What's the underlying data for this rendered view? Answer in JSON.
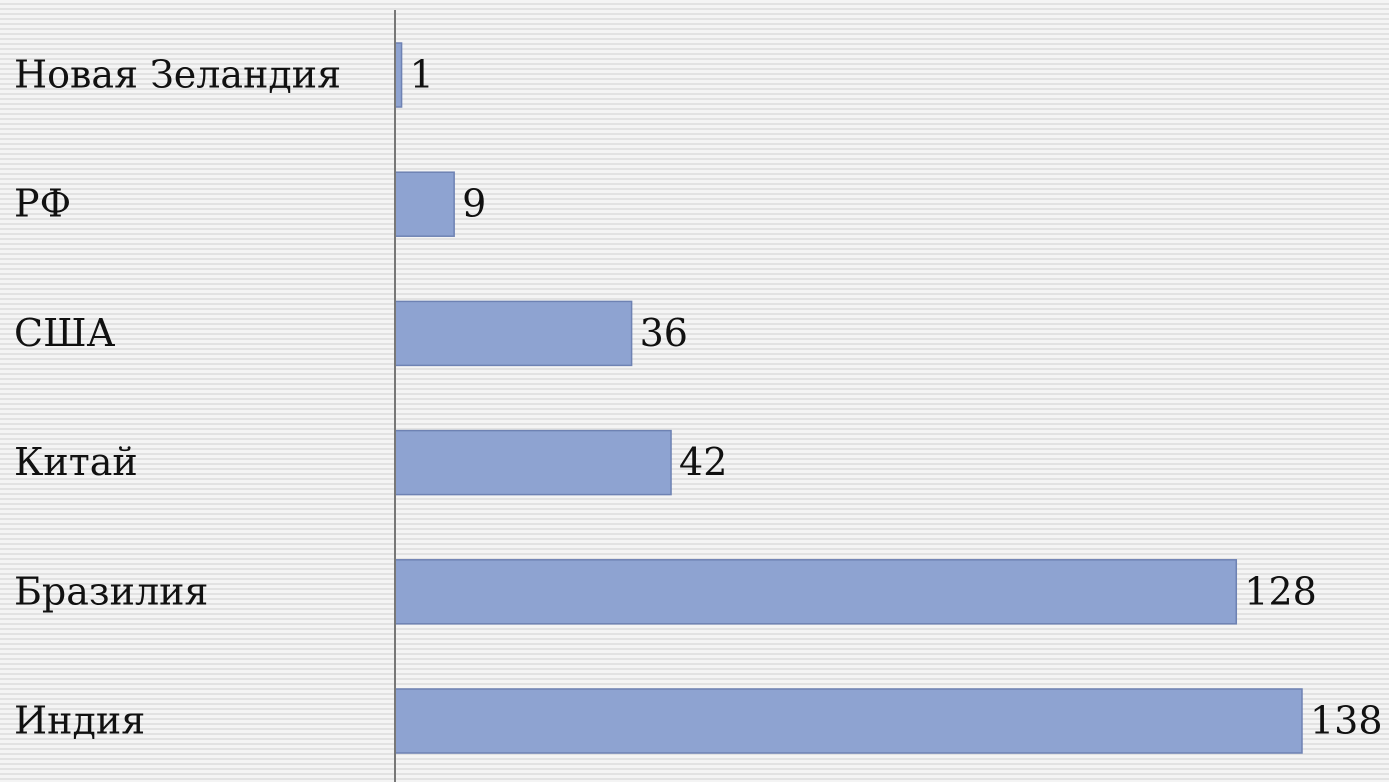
{
  "chart_data": {
    "type": "bar",
    "orientation": "horizontal",
    "categories": [
      "Новая Зеландия",
      "РФ",
      "США",
      "Китай",
      "Бразилия",
      "Индия"
    ],
    "values": [
      1,
      9,
      36,
      42,
      128,
      138
    ],
    "color": "#8ea3d1"
  }
}
